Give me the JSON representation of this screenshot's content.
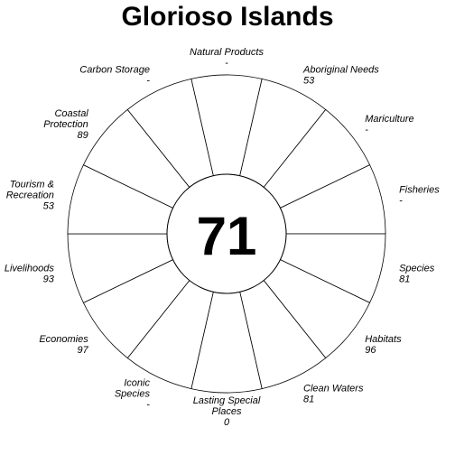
{
  "chart_data": {
    "type": "flower",
    "title": "Glorioso Islands",
    "score": "71",
    "range": [
      0,
      100
    ],
    "petals": [
      {
        "label": [
          "Natural Products"
        ],
        "value": null,
        "value_text": "-",
        "color": "#ffffff"
      },
      {
        "label": [
          "Aboriginal Needs"
        ],
        "value": 53,
        "value_text": "53",
        "color": "#e65a4b"
      },
      {
        "label": [
          "Mariculture"
        ],
        "value": null,
        "value_text": "-",
        "color": "#ffffff"
      },
      {
        "label": [
          "Fisheries"
        ],
        "value": null,
        "value_text": "-",
        "color": "#ffffff"
      },
      {
        "label": [
          "Species"
        ],
        "value": 81,
        "value_text": "81",
        "color": "#5e4fa2"
      },
      {
        "label": [
          "Habitats"
        ],
        "value": 96,
        "value_text": "96",
        "color": "#3288bd"
      },
      {
        "label": [
          "Clean Waters"
        ],
        "value": 81,
        "value_text": "81",
        "color": "#56adac"
      },
      {
        "label": [
          "Lasting Special",
          "Places"
        ],
        "value": 0,
        "value_text": "0",
        "color": "#ffffff"
      },
      {
        "label": [
          "Iconic",
          "Species"
        ],
        "value": null,
        "value_text": "-",
        "color": "#ffffff"
      },
      {
        "label": [
          "Economies"
        ],
        "value": 97,
        "value_text": "97",
        "color": "#d7ed9b"
      },
      {
        "label": [
          "Livelihoods"
        ],
        "value": 93,
        "value_text": "93",
        "color": "#f6e690"
      },
      {
        "label": [
          "Tourism &",
          "Recreation"
        ],
        "value": 53,
        "value_text": "53",
        "color": "#fdd27e"
      },
      {
        "label": [
          "Coastal",
          "Protection"
        ],
        "value": 89,
        "value_text": "89",
        "color": "#fdb365"
      },
      {
        "label": [
          "Carbon Storage"
        ],
        "value": null,
        "value_text": "-",
        "color": "#ffffff"
      }
    ]
  }
}
